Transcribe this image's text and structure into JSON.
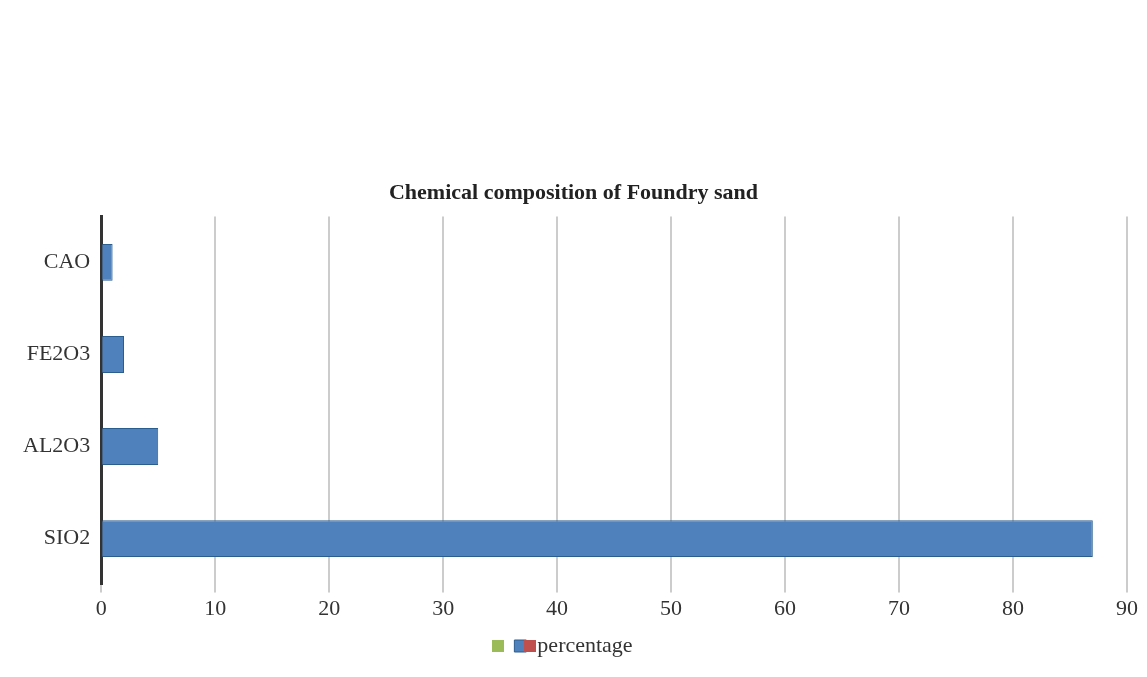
{
  "chart_data": {
    "type": "bar",
    "orientation": "horizontal",
    "title": "Chemical composition of Foundry sand",
    "categories": [
      "CAO",
      "FE2O3",
      "AL2O3",
      "SIO2"
    ],
    "series": [
      {
        "name": "percentage",
        "color": "#4f81bd",
        "values": [
          1,
          2,
          5,
          87
        ]
      }
    ],
    "xlim": [
      0,
      90
    ],
    "xticks": [
      0,
      10,
      20,
      30,
      40,
      50,
      60,
      70,
      80,
      90
    ],
    "grid": "x",
    "legend": "bottom"
  }
}
